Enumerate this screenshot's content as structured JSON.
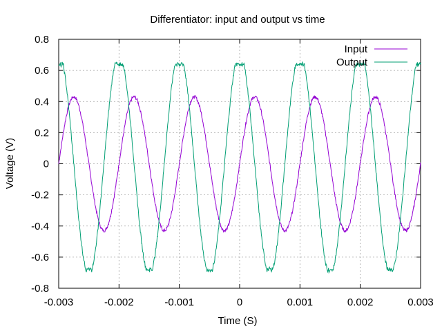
{
  "chart_data": {
    "type": "line",
    "title": "Differentiator: input and output vs time",
    "xlabel": "Time (S)",
    "ylabel": "Voltage (V)",
    "xlim": [
      -0.003,
      0.003
    ],
    "ylim": [
      -0.8,
      0.8
    ],
    "xticks": [
      -0.003,
      -0.002,
      -0.001,
      0,
      0.001,
      0.002,
      0.003
    ],
    "xtick_labels": [
      "-0.003",
      "-0.002",
      "-0.001",
      "0",
      "0.001",
      "0.002",
      "0.003"
    ],
    "yticks": [
      -0.8,
      -0.6,
      -0.4,
      -0.2,
      0,
      0.2,
      0.4,
      0.6,
      0.8
    ],
    "ytick_labels": [
      "-0.8",
      "-0.6",
      "-0.4",
      "-0.2",
      "0",
      "0.2",
      "0.4",
      "0.6",
      "0.8"
    ],
    "grid": true,
    "legend_position": "top-right",
    "series": [
      {
        "name": "Input",
        "color": "#9400d3",
        "waveform": "sine",
        "frequency_hz": 1000,
        "amplitude": 0.43,
        "phase_zero_crossing_time": 0,
        "points": [
          [
            -0.003,
            0.0
          ],
          [
            -0.00275,
            0.43
          ],
          [
            -0.0025,
            0.0
          ],
          [
            -0.00225,
            -0.44
          ],
          [
            -0.002,
            0.0
          ],
          [
            -0.00175,
            0.43
          ],
          [
            -0.0015,
            0.0
          ],
          [
            -0.00125,
            -0.44
          ],
          [
            -0.001,
            0.0
          ],
          [
            -0.00075,
            0.43
          ],
          [
            -0.0005,
            0.0
          ],
          [
            -0.00025,
            -0.44
          ],
          [
            0.0,
            0.0
          ],
          [
            0.00025,
            0.43
          ],
          [
            0.0005,
            0.0
          ],
          [
            0.00075,
            -0.44
          ],
          [
            0.001,
            0.0
          ],
          [
            0.00125,
            0.43
          ],
          [
            0.0015,
            0.0
          ],
          [
            0.00175,
            -0.44
          ],
          [
            0.002,
            0.0
          ],
          [
            0.00225,
            0.43
          ],
          [
            0.0025,
            0.0
          ],
          [
            0.00275,
            -0.44
          ],
          [
            0.003,
            0.0
          ]
        ]
      },
      {
        "name": "Output",
        "color": "#009e73",
        "waveform": "clipped-cosine",
        "frequency_hz": 1000,
        "amplitude": 0.66,
        "clip_high": 0.64,
        "clip_low": -0.68,
        "points": [
          [
            -0.003,
            0.64
          ],
          [
            -0.00275,
            0.0
          ],
          [
            -0.0025,
            -0.68
          ],
          [
            -0.00225,
            0.0
          ],
          [
            -0.002,
            0.65
          ],
          [
            -0.00175,
            0.0
          ],
          [
            -0.0015,
            -0.69
          ],
          [
            -0.00125,
            0.0
          ],
          [
            -0.001,
            0.64
          ],
          [
            -0.00075,
            0.0
          ],
          [
            -0.0005,
            -0.68
          ],
          [
            -0.00025,
            0.0
          ],
          [
            0.0,
            0.64
          ],
          [
            0.00025,
            0.0
          ],
          [
            0.0005,
            -0.68
          ],
          [
            0.00075,
            0.0
          ],
          [
            0.001,
            0.64
          ],
          [
            0.00125,
            0.0
          ],
          [
            0.0015,
            -0.68
          ],
          [
            0.00175,
            0.0
          ],
          [
            0.002,
            0.64
          ],
          [
            0.00225,
            0.0
          ],
          [
            0.0025,
            -0.69
          ],
          [
            0.00275,
            0.0
          ],
          [
            0.003,
            0.64
          ]
        ]
      }
    ]
  }
}
